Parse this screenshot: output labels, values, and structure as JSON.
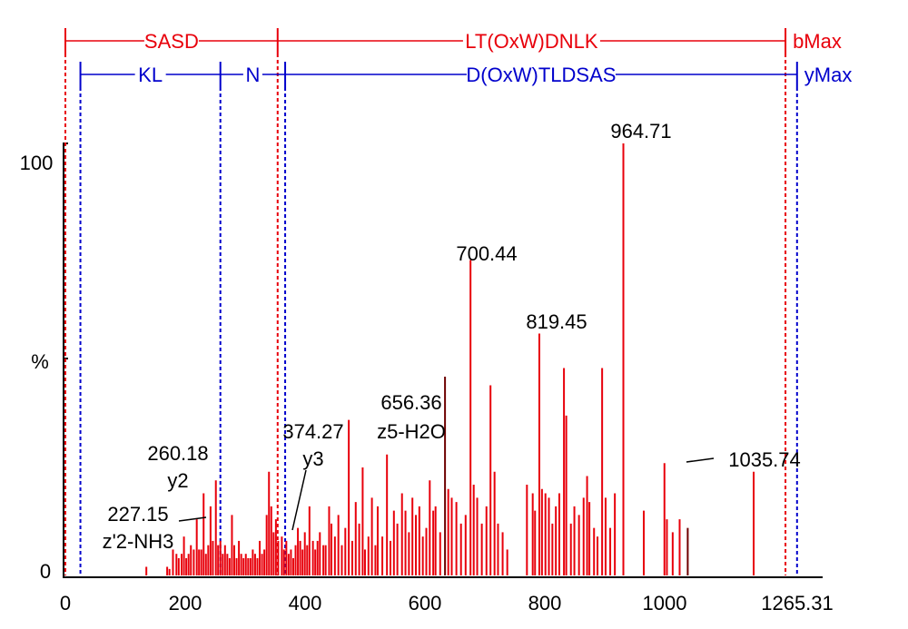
{
  "chart_data": {
    "type": "bar",
    "title": "",
    "xlabel": "",
    "ylabel": "%",
    "xlim": [
      0,
      1265.31
    ],
    "ylim": [
      0,
      100
    ],
    "x_ticks": [
      "0",
      "200",
      "400",
      "600",
      "800",
      "1000",
      "1265.31"
    ],
    "y_ticks": [
      "0",
      "%",
      "100"
    ],
    "colors": {
      "b_ions": "#e8000b",
      "y_ions": "#0000cc",
      "peak": "#e8000b",
      "peak_dark": "#6e0000",
      "axis": "#000000"
    },
    "b_series": {
      "end_label": "bMax",
      "segments": [
        "SASD",
        "LT(OxW)DNLK"
      ],
      "boundaries": [
        0,
        367,
        1245
      ]
    },
    "y_series": {
      "end_label": "yMax",
      "segments": [
        "KL",
        "N",
        "D(OxW)TLDSAS"
      ],
      "boundaries": [
        26,
        268,
        380,
        1265
      ]
    },
    "peaks": [
      {
        "x": 140,
        "y": 2
      },
      {
        "x": 176,
        "y": 2
      },
      {
        "x": 180,
        "y": 1.5
      },
      {
        "x": 186,
        "y": 6
      },
      {
        "x": 192,
        "y": 5
      },
      {
        "x": 196,
        "y": 4
      },
      {
        "x": 201,
        "y": 5
      },
      {
        "x": 205,
        "y": 9
      },
      {
        "x": 209,
        "y": 4
      },
      {
        "x": 213,
        "y": 5
      },
      {
        "x": 217,
        "y": 7
      },
      {
        "x": 222,
        "y": 6
      },
      {
        "x": 227.15,
        "y": 13
      },
      {
        "x": 231,
        "y": 6
      },
      {
        "x": 235,
        "y": 6
      },
      {
        "x": 239,
        "y": 19
      },
      {
        "x": 243,
        "y": 5
      },
      {
        "x": 247,
        "y": 7
      },
      {
        "x": 251,
        "y": 16
      },
      {
        "x": 255,
        "y": 8
      },
      {
        "x": 260.18,
        "y": 22
      },
      {
        "x": 264,
        "y": 7
      },
      {
        "x": 268,
        "y": 8
      },
      {
        "x": 272,
        "y": 5
      },
      {
        "x": 276,
        "y": 7
      },
      {
        "x": 280,
        "y": 5
      },
      {
        "x": 284,
        "y": 4
      },
      {
        "x": 288,
        "y": 14
      },
      {
        "x": 292,
        "y": 7
      },
      {
        "x": 296,
        "y": 4
      },
      {
        "x": 300,
        "y": 8
      },
      {
        "x": 304,
        "y": 5
      },
      {
        "x": 308,
        "y": 4
      },
      {
        "x": 312,
        "y": 5
      },
      {
        "x": 316,
        "y": 4
      },
      {
        "x": 320,
        "y": 4
      },
      {
        "x": 324,
        "y": 6
      },
      {
        "x": 328,
        "y": 5
      },
      {
        "x": 332,
        "y": 4
      },
      {
        "x": 336,
        "y": 8
      },
      {
        "x": 340,
        "y": 5
      },
      {
        "x": 344,
        "y": 6
      },
      {
        "x": 348,
        "y": 14
      },
      {
        "x": 352,
        "y": 24
      },
      {
        "x": 356,
        "y": 16
      },
      {
        "x": 360,
        "y": 10
      },
      {
        "x": 364,
        "y": 13
      },
      {
        "x": 368,
        "y": 8
      },
      {
        "x": 374.27,
        "y": 9
      },
      {
        "x": 378,
        "y": 6
      },
      {
        "x": 382,
        "y": 8
      },
      {
        "x": 386,
        "y": 5
      },
      {
        "x": 390,
        "y": 6
      },
      {
        "x": 394,
        "y": 4
      },
      {
        "x": 398,
        "y": 7
      },
      {
        "x": 402,
        "y": 11
      },
      {
        "x": 406,
        "y": 8
      },
      {
        "x": 410,
        "y": 6
      },
      {
        "x": 414,
        "y": 10
      },
      {
        "x": 418,
        "y": 7
      },
      {
        "x": 422,
        "y": 16
      },
      {
        "x": 428,
        "y": 8
      },
      {
        "x": 432,
        "y": 6
      },
      {
        "x": 436,
        "y": 8
      },
      {
        "x": 440,
        "y": 10
      },
      {
        "x": 446,
        "y": 7
      },
      {
        "x": 450,
        "y": 7
      },
      {
        "x": 456,
        "y": 16
      },
      {
        "x": 460,
        "y": 12
      },
      {
        "x": 466,
        "y": 9
      },
      {
        "x": 472,
        "y": 14
      },
      {
        "x": 478,
        "y": 7
      },
      {
        "x": 484,
        "y": 11
      },
      {
        "x": 490,
        "y": 36
      },
      {
        "x": 496,
        "y": 8
      },
      {
        "x": 502,
        "y": 17
      },
      {
        "x": 508,
        "y": 12
      },
      {
        "x": 514,
        "y": 25
      },
      {
        "x": 518,
        "y": 6
      },
      {
        "x": 524,
        "y": 9
      },
      {
        "x": 530,
        "y": 18
      },
      {
        "x": 536,
        "y": 7
      },
      {
        "x": 540,
        "y": 16
      },
      {
        "x": 548,
        "y": 9
      },
      {
        "x": 556,
        "y": 28
      },
      {
        "x": 562,
        "y": 8
      },
      {
        "x": 568,
        "y": 15
      },
      {
        "x": 574,
        "y": 12
      },
      {
        "x": 582,
        "y": 19
      },
      {
        "x": 588,
        "y": 15
      },
      {
        "x": 594,
        "y": 10
      },
      {
        "x": 600,
        "y": 18
      },
      {
        "x": 606,
        "y": 14
      },
      {
        "x": 612,
        "y": 16
      },
      {
        "x": 618,
        "y": 9
      },
      {
        "x": 624,
        "y": 11
      },
      {
        "x": 630,
        "y": 22
      },
      {
        "x": 636,
        "y": 15
      },
      {
        "x": 640,
        "y": 16
      },
      {
        "x": 648,
        "y": 10
      },
      {
        "x": 656.36,
        "y": 46,
        "dark": true
      },
      {
        "x": 662,
        "y": 20
      },
      {
        "x": 668,
        "y": 18
      },
      {
        "x": 676,
        "y": 17
      },
      {
        "x": 684,
        "y": 12
      },
      {
        "x": 692,
        "y": 14
      },
      {
        "x": 700.44,
        "y": 73
      },
      {
        "x": 706,
        "y": 21
      },
      {
        "x": 712,
        "y": 18
      },
      {
        "x": 720,
        "y": 12
      },
      {
        "x": 728,
        "y": 16
      },
      {
        "x": 735,
        "y": 44
      },
      {
        "x": 742,
        "y": 24
      },
      {
        "x": 748,
        "y": 12
      },
      {
        "x": 756,
        "y": 10
      },
      {
        "x": 764,
        "y": 6
      },
      {
        "x": 798,
        "y": 21
      },
      {
        "x": 808,
        "y": 19
      },
      {
        "x": 812,
        "y": 15
      },
      {
        "x": 819.45,
        "y": 56
      },
      {
        "x": 824,
        "y": 20
      },
      {
        "x": 830,
        "y": 19
      },
      {
        "x": 836,
        "y": 18
      },
      {
        "x": 842,
        "y": 12
      },
      {
        "x": 848,
        "y": 16
      },
      {
        "x": 854,
        "y": 19
      },
      {
        "x": 862,
        "y": 48
      },
      {
        "x": 866,
        "y": 37
      },
      {
        "x": 874,
        "y": 12
      },
      {
        "x": 880,
        "y": 16
      },
      {
        "x": 888,
        "y": 14
      },
      {
        "x": 896,
        "y": 18
      },
      {
        "x": 902,
        "y": 23
      },
      {
        "x": 906,
        "y": 17
      },
      {
        "x": 914,
        "y": 11
      },
      {
        "x": 920,
        "y": 9
      },
      {
        "x": 928,
        "y": 48
      },
      {
        "x": 934,
        "y": 18
      },
      {
        "x": 942,
        "y": 11
      },
      {
        "x": 950,
        "y": 19
      },
      {
        "x": 964.71,
        "y": 100
      },
      {
        "x": 1000,
        "y": 15
      },
      {
        "x": 1035.74,
        "y": 26
      },
      {
        "x": 1040,
        "y": 13
      },
      {
        "x": 1050,
        "y": 10
      },
      {
        "x": 1062,
        "y": 13
      },
      {
        "x": 1076,
        "y": 11,
        "dark": true
      },
      {
        "x": 1190,
        "y": 24
      }
    ],
    "annotations": [
      {
        "id": "p964",
        "x": 964.71,
        "value": "964.71"
      },
      {
        "id": "p700",
        "x": 700.44,
        "value": "700.44"
      },
      {
        "id": "p819",
        "x": 819.45,
        "value": "819.45"
      },
      {
        "id": "p656",
        "x": 656.36,
        "value": "656.36",
        "ion": "z5-H2O"
      },
      {
        "id": "p374",
        "x": 374.27,
        "value": "374.27",
        "ion": "y3"
      },
      {
        "id": "p260",
        "x": 260.18,
        "value": "260.18",
        "ion": "y2"
      },
      {
        "id": "p227",
        "x": 227.15,
        "value": "227.15",
        "ion": "z'2-NH3"
      },
      {
        "id": "p1035",
        "x": 1035.74,
        "value": "1035.74"
      }
    ]
  }
}
